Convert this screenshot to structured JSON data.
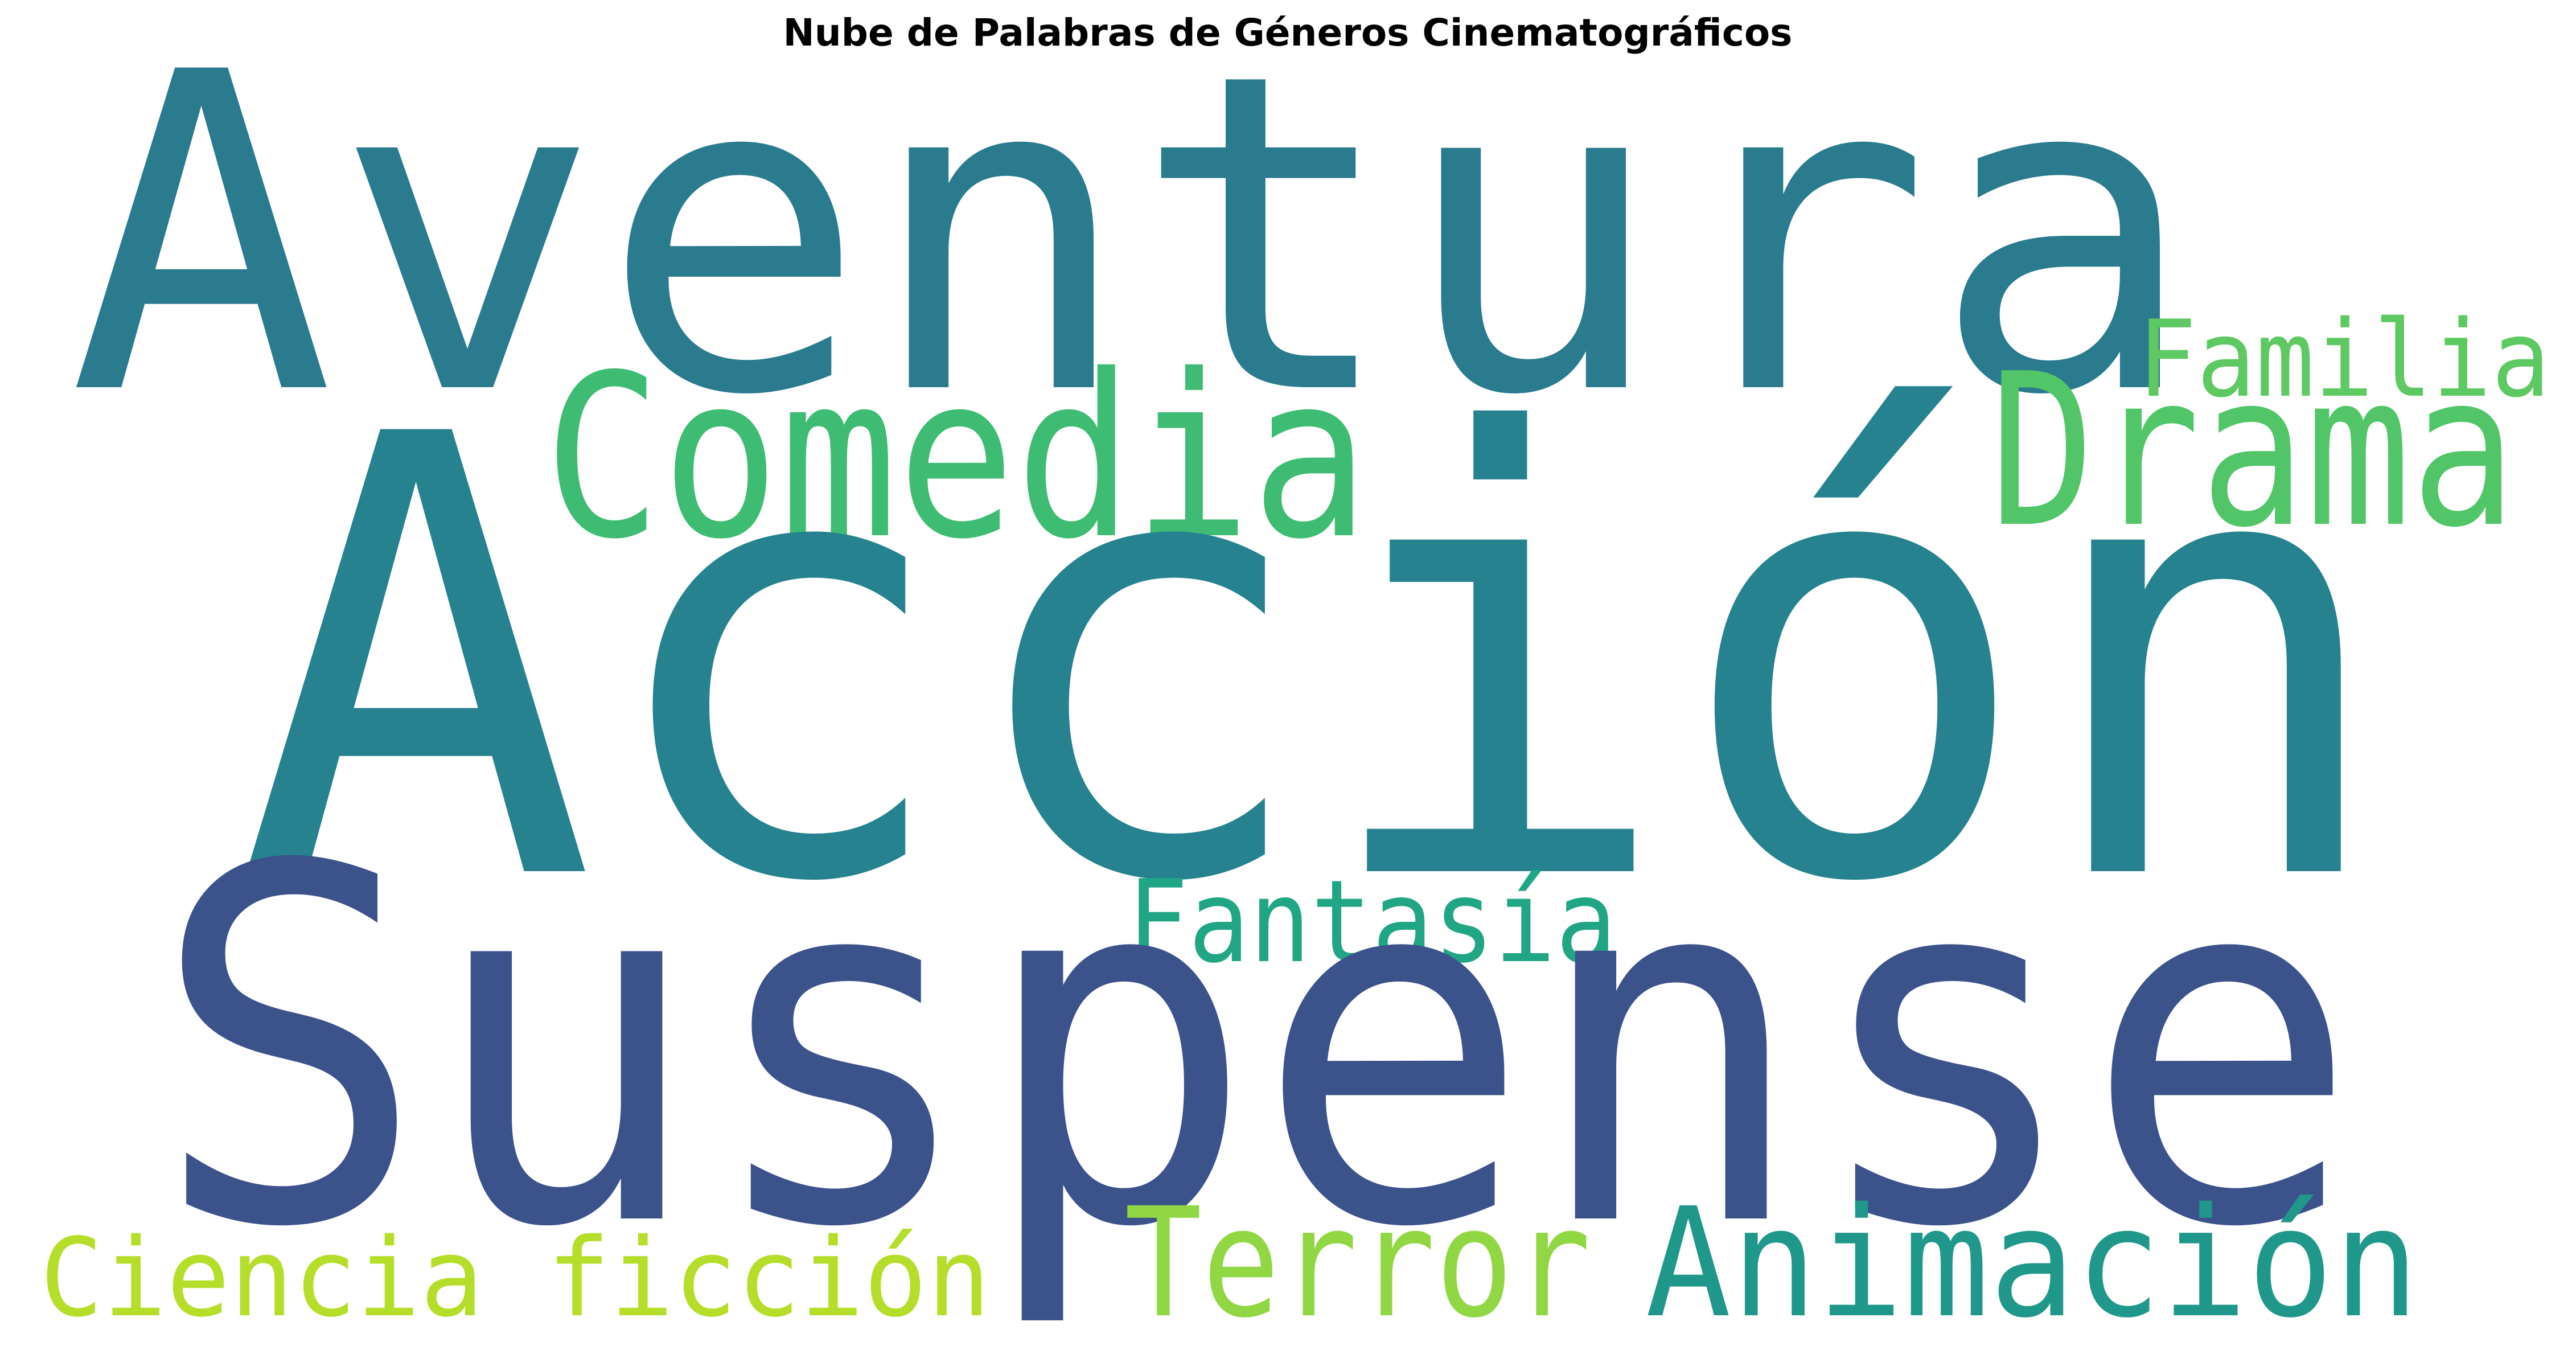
{
  "title": "Nube de Palabras de Géneros Cinematográficos",
  "words": [
    {
      "text": "Aventura",
      "color": "#2a7b8e"
    },
    {
      "text": "Familia",
      "color": "#5ec962"
    },
    {
      "text": "Comedia",
      "color": "#3fbc73"
    },
    {
      "text": "Drama",
      "color": "#52c569"
    },
    {
      "text": "Acción",
      "color": "#26828e"
    },
    {
      "text": "Fantasía",
      "color": "#21a685"
    },
    {
      "text": "Suspense",
      "color": "#3b528b"
    },
    {
      "text": "Ciencia ficción",
      "color": "#b5de2b"
    },
    {
      "text": "Terror",
      "color": "#90d743"
    },
    {
      "text": "Animación",
      "color": "#1f988b"
    }
  ]
}
